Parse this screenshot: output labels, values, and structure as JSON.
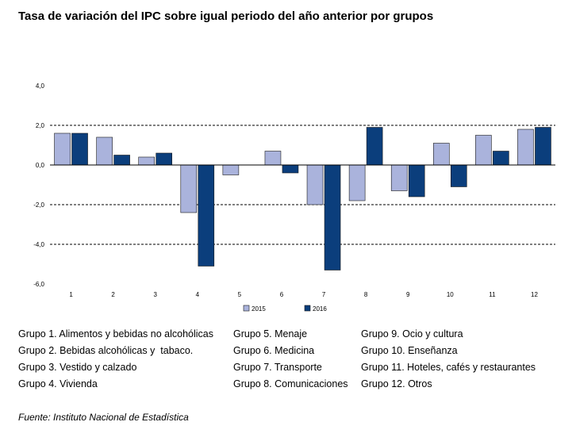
{
  "title": "Tasa de variación del IPC sobre igual periodo del año anterior por grupos",
  "source": "Fuente: Instituto Nacional de Estadística",
  "groups": [
    "Grupo 1. Alimentos y bebidas no alcohólicas",
    "Grupo 2. Bebidas alcohólicas y  tabaco.",
    "Grupo 3. Vestido y calzado",
    "Grupo 4. Vivienda",
    "Grupo 5. Menaje",
    "Grupo 6. Medicina",
    "Grupo 7. Transporte",
    "Grupo 8. Comunicaciones",
    "Grupo 9. Ocio y cultura",
    "Grupo 10. Enseñanza",
    "Grupo 11. Hoteles, cafés y restaurantes",
    "Grupo 12. Otros"
  ],
  "colors": {
    "2015": "#aab3dc",
    "2016": "#0b3e7c",
    "grid": "#000000"
  },
  "chart_data": {
    "type": "bar",
    "title": "Tasa de variación del IPC sobre igual periodo del año anterior por grupos",
    "xlabel": "",
    "ylabel": "",
    "categories": [
      "1",
      "2",
      "3",
      "4",
      "5",
      "6",
      "7",
      "8",
      "9",
      "10",
      "11",
      "12"
    ],
    "series": [
      {
        "name": "2015",
        "values": [
          1.6,
          1.4,
          0.4,
          -2.4,
          -0.5,
          0.7,
          -2.0,
          -1.8,
          -1.3,
          1.1,
          1.5,
          1.8
        ]
      },
      {
        "name": "2016",
        "values": [
          1.6,
          0.5,
          0.6,
          -5.1,
          0.0,
          -0.4,
          -5.3,
          1.9,
          -1.6,
          -1.1,
          0.7,
          1.9
        ]
      }
    ],
    "yticks": [
      "4,0",
      "2,0",
      "0,0",
      "-2,0",
      "-4,0",
      "-6,0"
    ],
    "ylim": [
      -6,
      4
    ],
    "grid": "dashed horizontal at -4, -2, 2",
    "legend": "bottom-center"
  }
}
